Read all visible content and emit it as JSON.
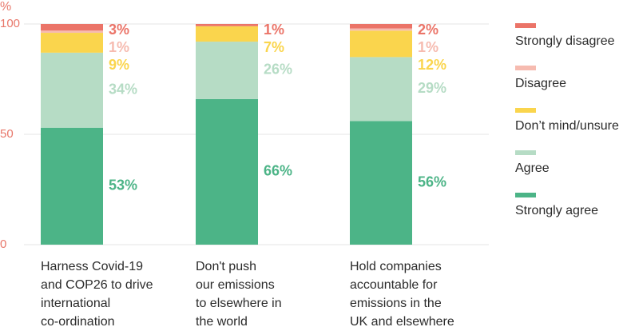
{
  "chart_data": {
    "type": "stacked-bar",
    "y_unit": "%",
    "categories": [
      "Harness Covid-19\nand COP26 to drive\ninternational\nco-ordination",
      "Don't push\nour emissions\nto elsewhere in\nthe world",
      "Hold companies\naccountable for\nemissions in the\nUK and elsewhere"
    ],
    "series": [
      {
        "name": "Strongly agree",
        "color": "#4cb487",
        "values": [
          53,
          66,
          56
        ],
        "value_labels": [
          "53%",
          "66%",
          "56%"
        ]
      },
      {
        "name": "Agree",
        "color": "#b6dcc5",
        "values": [
          34,
          26,
          29
        ],
        "value_labels": [
          "34%",
          "26%",
          "29%"
        ]
      },
      {
        "name": "Don’t mind/unsure",
        "color": "#fad54d",
        "values": [
          9,
          7,
          12
        ],
        "value_labels": [
          "9%",
          "7%",
          "12%"
        ]
      },
      {
        "name": "Disagree",
        "color": "#f6bbb0",
        "values": [
          1,
          null,
          1
        ],
        "value_labels": [
          "1%",
          null,
          "1%"
        ]
      },
      {
        "name": "Strongly disagree",
        "color": "#eb7468",
        "values": [
          3,
          1,
          2
        ],
        "value_labels": [
          "3%",
          "1%",
          "2%"
        ]
      }
    ],
    "ylim": [
      0,
      100
    ],
    "yticks": [
      0,
      50,
      100
    ],
    "grid": true,
    "tick_color": "#e8776a"
  }
}
